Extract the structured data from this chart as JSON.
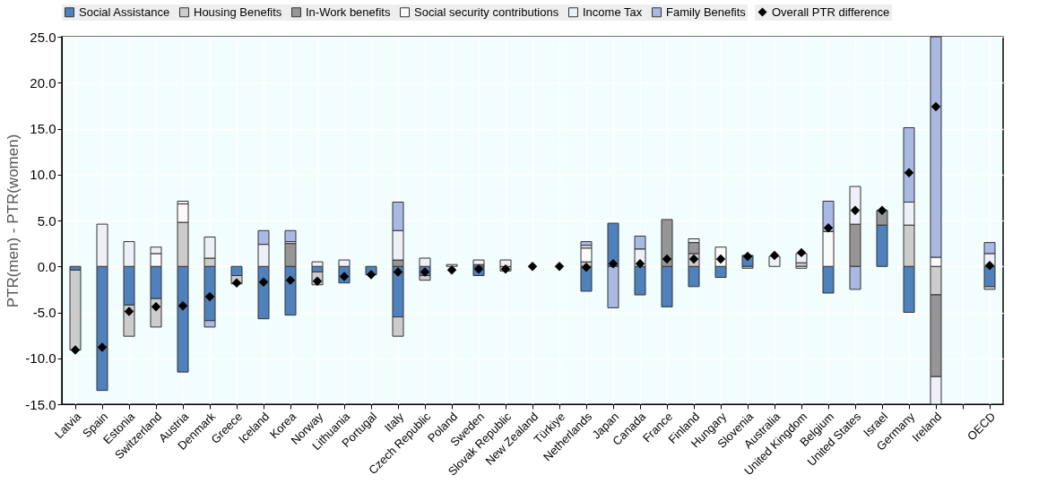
{
  "chart_data": {
    "type": "bar",
    "stacked": true,
    "ylabel": "PTR(men) - PTR(women)",
    "categories": [
      "Latvia",
      "Spain",
      "Estonia",
      "Switzerland",
      "Austria",
      "Denmark",
      "Greece",
      "Iceland",
      "Korea",
      "Norway",
      "Lithuania",
      "Portugal",
      "Italy",
      "Czech Republic",
      "Poland",
      "Sweden",
      "Slovak Republic",
      "New Zealand",
      "Türkiye",
      "Netherlands",
      "Japan",
      "Canada",
      "France",
      "Finland",
      "Hungary",
      "Slovenia",
      "Australia",
      "United Kingdom",
      "Belgium",
      "United States",
      "Israel",
      "Germany",
      "Ireland",
      null,
      "OECD"
    ],
    "series": [
      {
        "name": "Social Assistance",
        "color": "#4f81bd",
        "values": [
          -0.4,
          -13.5,
          -4.2,
          -3.5,
          -11.5,
          -5.9,
          -1.0,
          -5.7,
          -5.3,
          -0.6,
          -1.8,
          -0.9,
          -5.5,
          -1.0,
          null,
          -1.0,
          null,
          null,
          null,
          -2.7,
          4.7,
          -3.1,
          -4.4,
          -2.2,
          -1.2,
          1.2,
          null,
          null,
          -2.9,
          null,
          4.5,
          -5.0,
          null,
          null,
          -2.2
        ]
      },
      {
        "name": "Housing Benefits",
        "color": "#cccccc",
        "values": [
          -8.7,
          null,
          -3.4,
          -3.1,
          4.8,
          0.9,
          -0.9,
          null,
          null,
          -1.4,
          null,
          null,
          -2.1,
          -0.5,
          null,
          null,
          -0.5,
          null,
          null,
          0.5,
          null,
          null,
          null,
          1.4,
          null,
          -0.2,
          null,
          0.4,
          null,
          null,
          null,
          4.5,
          -3.1,
          null,
          -0.3
        ]
      },
      {
        "name": "In-Work benefits",
        "color": "#969696",
        "values": [
          null,
          null,
          null,
          null,
          null,
          null,
          null,
          null,
          2.5,
          null,
          null,
          null,
          0.7,
          null,
          null,
          0.2,
          null,
          null,
          null,
          null,
          null,
          null,
          5.1,
          1.2,
          null,
          null,
          null,
          null,
          null,
          4.6,
          1.6,
          null,
          -8.9,
          null,
          null
        ]
      },
      {
        "name": "Social security contributions",
        "color": "#fafafa",
        "values": [
          null,
          null,
          null,
          1.4,
          2.0,
          null,
          null,
          null,
          null,
          null,
          null,
          null,
          null,
          null,
          null,
          null,
          null,
          null,
          null,
          1.5,
          null,
          null,
          null,
          null,
          2.1,
          null,
          null,
          -0.2,
          3.8,
          null,
          null,
          null,
          1.0,
          null,
          null
        ]
      },
      {
        "name": "Income Tax",
        "color": "#eef0f8",
        "values": [
          null,
          4.6,
          2.7,
          0.7,
          0.3,
          2.3,
          null,
          2.4,
          0.2,
          0.5,
          0.7,
          null,
          3.2,
          0.9,
          0.2,
          0.5,
          0.7,
          null,
          null,
          0.3,
          null,
          1.9,
          null,
          0.4,
          null,
          null,
          1.1,
          1.0,
          null,
          4.1,
          null,
          2.5,
          -3.0,
          null,
          1.4
        ]
      },
      {
        "name": "Family Benefits",
        "color": "#a9b9e3",
        "values": [
          null,
          null,
          null,
          null,
          null,
          -0.7,
          null,
          1.5,
          1.2,
          null,
          null,
          null,
          3.1,
          null,
          null,
          null,
          null,
          null,
          null,
          0.4,
          -4.5,
          1.4,
          null,
          null,
          null,
          null,
          null,
          null,
          3.3,
          -2.5,
          null,
          8.1,
          24.0,
          null,
          1.2
        ]
      },
      {
        "name": "Overall PTR difference",
        "type": "scatter",
        "marker": "diamond",
        "color": "#000000",
        "values": [
          -9.1,
          -8.8,
          -4.9,
          -4.4,
          -4.3,
          -3.3,
          -1.8,
          -1.7,
          -1.5,
          -1.6,
          -1.1,
          -0.9,
          -0.6,
          -0.6,
          -0.4,
          -0.3,
          -0.3,
          0.0,
          0.0,
          -0.1,
          0.3,
          0.3,
          0.8,
          0.8,
          0.8,
          1.1,
          1.2,
          1.5,
          4.2,
          6.1,
          6.1,
          10.2,
          17.4,
          null,
          0.1
        ]
      }
    ],
    "ylim": [
      -15,
      25
    ],
    "yticks": [
      {
        "value": -15,
        "label": "-15.0"
      },
      {
        "value": -10,
        "label": "-10.0"
      },
      {
        "value": -5,
        "label": "-5.0"
      },
      {
        "value": 0,
        "label": "0.0"
      },
      {
        "value": 5,
        "label": "5.0"
      },
      {
        "value": 10,
        "label": "10.0"
      },
      {
        "value": 15,
        "label": "15.0"
      },
      {
        "value": 20,
        "label": "20.0"
      },
      {
        "value": 25,
        "label": "25.0"
      }
    ],
    "grid": true,
    "legend": "top"
  }
}
